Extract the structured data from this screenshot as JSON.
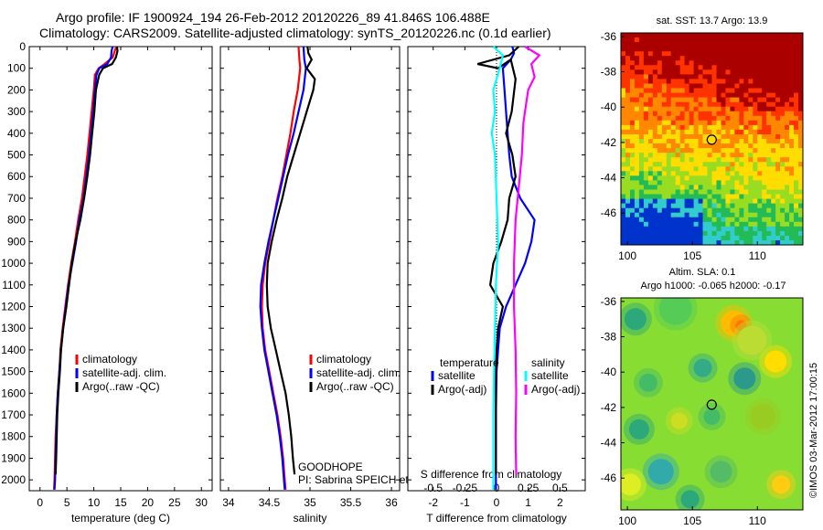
{
  "header": {
    "title_line1": "Argo profile: IF 1900924_194 26-Feb-2012 20120226_89 41.846S 106.488E",
    "title_line2": "Climatology: CARS2009. Satellite-adjusted climatology: synTS_20120226.nc (0.1d earlier)"
  },
  "chart_data": [
    {
      "type": "line",
      "xlabel": "temperature (deg C)",
      "ylabel": "",
      "xlim": [
        -2,
        32
      ],
      "ylim": [
        0,
        2050
      ],
      "y_inverted": true,
      "xticks": [
        "0",
        "5",
        "10",
        "15",
        "20",
        "25",
        "30"
      ],
      "yticks": [
        "0",
        "100",
        "200",
        "300",
        "400",
        "500",
        "600",
        "700",
        "800",
        "900",
        "1000",
        "1100",
        "1200",
        "1300",
        "1400",
        "1500",
        "1600",
        "1700",
        "1800",
        "1900",
        "2000"
      ],
      "legend": [
        "climatology",
        "satellite-adj. clim.",
        "Argo(..raw -QC)"
      ],
      "series": [
        {
          "name": "climatology",
          "color": "#ff0000",
          "points": [
            [
              14.2,
              0
            ],
            [
              13.9,
              20
            ],
            [
              13.5,
              50
            ],
            [
              12.0,
              80
            ],
            [
              10.9,
              100
            ],
            [
              10.2,
              130
            ],
            [
              10.0,
              200
            ],
            [
              9.6,
              300
            ],
            [
              9.2,
              400
            ],
            [
              8.8,
              500
            ],
            [
              8.3,
              600
            ],
            [
              7.8,
              700
            ],
            [
              7.1,
              800
            ],
            [
              6.5,
              900
            ],
            [
              5.8,
              1000
            ],
            [
              5.2,
              1100
            ],
            [
              4.7,
              1200
            ],
            [
              4.2,
              1300
            ],
            [
              3.8,
              1400
            ],
            [
              3.6,
              1500
            ],
            [
              3.3,
              1600
            ],
            [
              3.1,
              1700
            ],
            [
              2.9,
              1800
            ],
            [
              2.8,
              1900
            ],
            [
              2.7,
              2000
            ],
            [
              2.6,
              2045
            ]
          ]
        },
        {
          "name": "satellite-adj. clim.",
          "color": "#0000ff",
          "points": [
            [
              13.5,
              0
            ],
            [
              13.3,
              20
            ],
            [
              13.2,
              50
            ],
            [
              12.5,
              80
            ],
            [
              11.0,
              100
            ],
            [
              10.5,
              130
            ],
            [
              10.2,
              200
            ],
            [
              9.9,
              300
            ],
            [
              9.5,
              400
            ],
            [
              9.1,
              500
            ],
            [
              8.6,
              600
            ],
            [
              8.1,
              700
            ],
            [
              7.3,
              800
            ],
            [
              6.7,
              900
            ],
            [
              6.0,
              1000
            ],
            [
              5.3,
              1100
            ],
            [
              4.8,
              1200
            ],
            [
              4.3,
              1300
            ],
            [
              3.9,
              1400
            ],
            [
              3.6,
              1500
            ],
            [
              3.3,
              1600
            ],
            [
              3.1,
              1700
            ],
            [
              3.0,
              1800
            ],
            [
              2.9,
              1900
            ],
            [
              2.8,
              2000
            ],
            [
              2.7,
              2045
            ]
          ]
        },
        {
          "name": "Argo(..raw -QC)",
          "color": "#000000",
          "points": [
            [
              14.3,
              0
            ],
            [
              14.4,
              20
            ],
            [
              14.1,
              50
            ],
            [
              13.4,
              80
            ],
            [
              11.7,
              100
            ],
            [
              11.0,
              130
            ],
            [
              10.4,
              200
            ],
            [
              10.1,
              300
            ],
            [
              9.7,
              400
            ],
            [
              9.3,
              500
            ],
            [
              8.8,
              600
            ],
            [
              8.2,
              700
            ],
            [
              7.5,
              800
            ],
            [
              6.6,
              900
            ],
            [
              5.9,
              1000
            ],
            [
              5.4,
              1100
            ],
            [
              4.9,
              1200
            ],
            [
              4.3,
              1300
            ],
            [
              3.9,
              1400
            ],
            [
              3.7,
              1500
            ],
            [
              3.4,
              1600
            ],
            [
              3.2,
              1700
            ],
            [
              3.1,
              1800
            ],
            [
              3.0,
              1900
            ],
            [
              2.9,
              1975
            ]
          ]
        }
      ]
    },
    {
      "type": "line",
      "xlabel": "salinity",
      "ylabel": "",
      "xlim": [
        33.9,
        36.1
      ],
      "ylim": [
        0,
        2050
      ],
      "y_inverted": true,
      "xticks": [
        "34",
        "34.5",
        "35",
        "35.5",
        "36"
      ],
      "legend": [
        "climatology",
        "satellite-adj. clim.",
        "Argo(..raw -QC)"
      ],
      "annotation": [
        "GOODHOPE",
        "PI: Sabrina SPEICH et Michel ARHAN"
      ],
      "series": [
        {
          "name": "climatology",
          "color": "#ff0000",
          "points": [
            [
              34.86,
              0
            ],
            [
              34.87,
              60
            ],
            [
              34.88,
              100
            ],
            [
              34.85,
              200
            ],
            [
              34.8,
              300
            ],
            [
              34.76,
              400
            ],
            [
              34.71,
              500
            ],
            [
              34.66,
              600
            ],
            [
              34.6,
              700
            ],
            [
              34.55,
              800
            ],
            [
              34.5,
              900
            ],
            [
              34.45,
              1000
            ],
            [
              34.42,
              1100
            ],
            [
              34.41,
              1200
            ],
            [
              34.42,
              1300
            ],
            [
              34.45,
              1400
            ],
            [
              34.5,
              1500
            ],
            [
              34.55,
              1600
            ],
            [
              34.6,
              1700
            ],
            [
              34.64,
              1800
            ],
            [
              34.67,
              1900
            ],
            [
              34.69,
              2000
            ],
            [
              34.7,
              2045
            ]
          ]
        },
        {
          "name": "satellite-adj. clim.",
          "color": "#0000ff",
          "points": [
            [
              34.92,
              0
            ],
            [
              34.93,
              60
            ],
            [
              34.95,
              100
            ],
            [
              34.92,
              200
            ],
            [
              34.86,
              300
            ],
            [
              34.8,
              400
            ],
            [
              34.73,
              500
            ],
            [
              34.67,
              600
            ],
            [
              34.61,
              700
            ],
            [
              34.55,
              800
            ],
            [
              34.49,
              900
            ],
            [
              34.44,
              1000
            ],
            [
              34.4,
              1100
            ],
            [
              34.39,
              1200
            ],
            [
              34.41,
              1300
            ],
            [
              34.44,
              1400
            ],
            [
              34.49,
              1500
            ],
            [
              34.54,
              1600
            ],
            [
              34.59,
              1700
            ],
            [
              34.63,
              1800
            ],
            [
              34.66,
              1900
            ],
            [
              34.68,
              2000
            ],
            [
              34.69,
              2045
            ]
          ]
        },
        {
          "name": "Argo(..raw -QC)",
          "color": "#000000",
          "points": [
            [
              34.97,
              0
            ],
            [
              34.98,
              30
            ],
            [
              35.02,
              60
            ],
            [
              34.96,
              100
            ],
            [
              35.06,
              150
            ],
            [
              35.04,
              200
            ],
            [
              34.96,
              300
            ],
            [
              34.88,
              400
            ],
            [
              34.8,
              500
            ],
            [
              34.72,
              600
            ],
            [
              34.66,
              700
            ],
            [
              34.59,
              800
            ],
            [
              34.53,
              900
            ],
            [
              34.48,
              1000
            ],
            [
              34.47,
              1100
            ],
            [
              34.48,
              1200
            ],
            [
              34.52,
              1300
            ],
            [
              34.58,
              1400
            ],
            [
              34.64,
              1500
            ],
            [
              34.7,
              1600
            ],
            [
              34.74,
              1700
            ],
            [
              34.77,
              1800
            ],
            [
              34.79,
              1900
            ],
            [
              34.81,
              1975
            ]
          ]
        }
      ]
    },
    {
      "type": "line",
      "xlabel": "T difference from climatology",
      "xlabel_top": "S difference from climatology",
      "xlim": [
        -2.8,
        2.8
      ],
      "ylim": [
        0,
        2050
      ],
      "y_inverted": true,
      "xticks": [
        "-2",
        "-1",
        "0",
        "1",
        "2"
      ],
      "xticks_top": [
        "-0.5",
        "-0.25",
        "0",
        "0.25",
        "0.5"
      ],
      "legend_headers": [
        "temperature",
        "salinity"
      ],
      "legend": [
        "satellite",
        "Argo(-adj)",
        "satellite",
        "Argo(-adj)"
      ],
      "series": [
        {
          "name": "satellite",
          "color": "#0000ff",
          "points": [
            [
              0.5,
              0
            ],
            [
              0.55,
              30
            ],
            [
              0.45,
              60
            ],
            [
              0.2,
              100
            ],
            [
              0.25,
              200
            ],
            [
              0.3,
              300
            ],
            [
              0.35,
              400
            ],
            [
              0.4,
              500
            ],
            [
              0.48,
              600
            ],
            [
              0.75,
              700
            ],
            [
              1.2,
              800
            ],
            [
              1.1,
              900
            ],
            [
              0.9,
              1000
            ],
            [
              0.6,
              1100
            ],
            [
              0.3,
              1200
            ],
            [
              0.1,
              1300
            ],
            [
              0.05,
              1400
            ],
            [
              0.0,
              1500
            ],
            [
              -0.02,
              1700
            ],
            [
              -0.02,
              1900
            ],
            [
              -0.02,
              2045
            ]
          ]
        },
        {
          "name": "Argo(-adj)",
          "color": "#000000",
          "points": [
            [
              0.7,
              0
            ],
            [
              0.4,
              40
            ],
            [
              -0.6,
              80
            ],
            [
              0.05,
              100
            ],
            [
              0.45,
              60
            ],
            [
              0.6,
              150
            ],
            [
              0.48,
              300
            ],
            [
              0.3,
              400
            ],
            [
              0.5,
              500
            ],
            [
              0.6,
              600
            ],
            [
              0.4,
              700
            ],
            [
              0.35,
              800
            ],
            [
              0.15,
              900
            ],
            [
              -0.1,
              1000
            ],
            [
              -0.2,
              1100
            ],
            [
              0.2,
              1200
            ],
            [
              0.05,
              1300
            ],
            [
              0.0,
              1400
            ],
            [
              -0.02,
              1500
            ],
            [
              -0.02,
              1700
            ],
            [
              -0.02,
              1900
            ],
            [
              -0.02,
              1975
            ]
          ]
        },
        {
          "name": "satellite",
          "color": "#00ffff",
          "points": [
            [
              -0.1,
              0
            ],
            [
              0.2,
              40
            ],
            [
              0.1,
              100
            ],
            [
              -0.1,
              200
            ],
            [
              -0.05,
              300
            ],
            [
              -0.15,
              400
            ],
            [
              -0.05,
              500
            ],
            [
              0.0,
              700
            ],
            [
              0.05,
              900
            ],
            [
              -0.02,
              1100
            ],
            [
              -0.05,
              1300
            ],
            [
              -0.08,
              1500
            ],
            [
              -0.1,
              1700
            ],
            [
              -0.1,
              1900
            ],
            [
              -0.1,
              2045
            ]
          ]
        },
        {
          "name": "Argo(-adj)",
          "color": "#ff00ff",
          "points": [
            [
              0.9,
              0
            ],
            [
              1.35,
              40
            ],
            [
              1.1,
              80
            ],
            [
              1.2,
              140
            ],
            [
              1.0,
              200
            ],
            [
              0.85,
              350
            ],
            [
              0.8,
              500
            ],
            [
              0.7,
              650
            ],
            [
              0.6,
              800
            ],
            [
              0.55,
              1000
            ],
            [
              0.55,
              1200
            ],
            [
              0.6,
              1400
            ],
            [
              0.62,
              1600
            ],
            [
              0.6,
              1800
            ],
            [
              0.62,
              1975
            ]
          ]
        }
      ]
    },
    {
      "type": "heatmap",
      "title": "sat. SST: 13.7 Argo: 13.9",
      "xlim": [
        99.5,
        113.5
      ],
      "ylim": [
        -47.8,
        -35.8
      ],
      "xticks": [
        "100",
        "105",
        "110"
      ],
      "yticks": [
        "-36",
        "-38",
        "-40",
        "-42",
        "-44",
        "-46"
      ],
      "marker": {
        "x": 106.488,
        "y": -41.846
      }
    },
    {
      "type": "heatmap",
      "title": "Altim. SLA: 0.1",
      "subtitle": "Argo h1000: -0.065 h2000: -0.17",
      "xlim": [
        99.5,
        113.5
      ],
      "ylim": [
        -47.8,
        -35.8
      ],
      "xticks": [
        "100",
        "105",
        "110"
      ],
      "yticks": [
        "-36",
        "-38",
        "-40",
        "-42",
        "-44",
        "-46"
      ],
      "marker": {
        "x": 106.488,
        "y": -41.846
      }
    }
  ],
  "footer": {
    "credit": "©IMOS 03-Mar-2012 17:00:15"
  }
}
